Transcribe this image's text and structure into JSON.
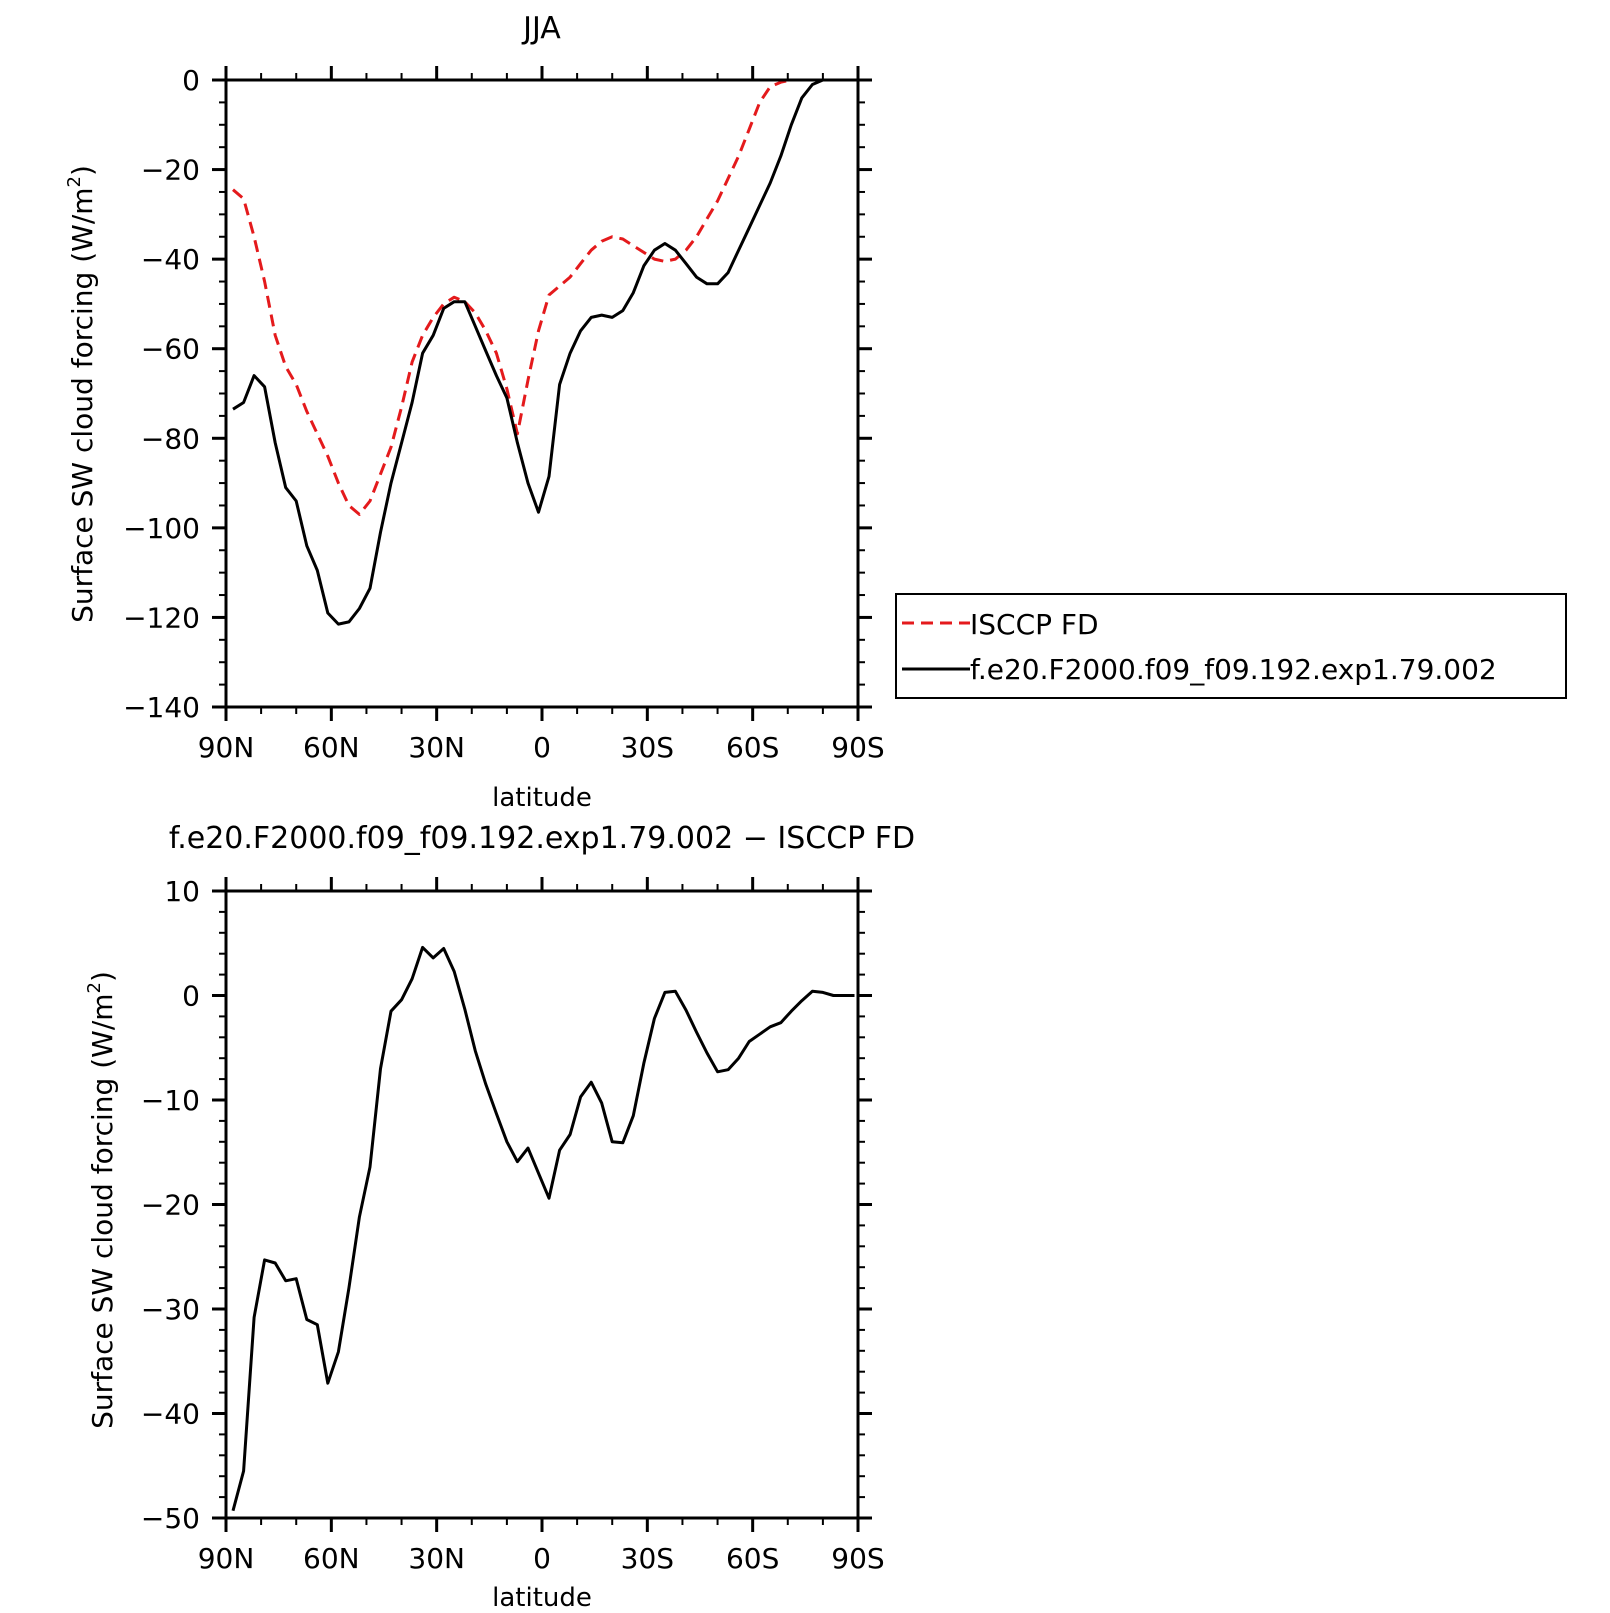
{
  "chart_data": [
    {
      "type": "line",
      "title": "JJA",
      "xlabel": "latitude",
      "ylabel": "Surface SW cloud forcing (W/m",
      "ylabel_sup": "2",
      "ylabel_end": ")",
      "x_ticks": [
        {
          "value": -90,
          "label": "90N"
        },
        {
          "value": -60,
          "label": "60N"
        },
        {
          "value": -30,
          "label": "30N"
        },
        {
          "value": 0,
          "label": "0"
        },
        {
          "value": 30,
          "label": "30S"
        },
        {
          "value": 60,
          "label": "60S"
        },
        {
          "value": 90,
          "label": "90S"
        }
      ],
      "xlim": [
        -90,
        90
      ],
      "ylim": [
        -140,
        0
      ],
      "y_ticks": [
        {
          "value": 0,
          "label": "0"
        },
        {
          "value": -20,
          "label": "−20"
        },
        {
          "value": -40,
          "label": "−40"
        },
        {
          "value": -60,
          "label": "−60"
        },
        {
          "value": -80,
          "label": "−80"
        },
        {
          "value": -100,
          "label": "−100"
        },
        {
          "value": -120,
          "label": "−120"
        },
        {
          "value": -140,
          "label": "−140"
        }
      ],
      "grid": false,
      "legend_position": "right",
      "series": [
        {
          "name": "ISCCP FD",
          "color": "#e41a1c",
          "dashed": true,
          "x": [
            -88,
            -85,
            -82,
            -79,
            -76,
            -73,
            -70,
            -67,
            -64,
            -61,
            -58,
            -55,
            -52,
            -49,
            -46,
            -43,
            -40,
            -37,
            -34,
            -31,
            -28,
            -25,
            -22,
            -19,
            -16,
            -13,
            -10,
            -7,
            -4,
            -1,
            2,
            5,
            8,
            11,
            14,
            17,
            20,
            23,
            26,
            29,
            32,
            35,
            38,
            41,
            44,
            47,
            50,
            53,
            56,
            59,
            62,
            65,
            68,
            71,
            74,
            77,
            80,
            83,
            86,
            89
          ],
          "y": [
            -24.5,
            -26.5,
            -35,
            -45,
            -57,
            -64,
            -68,
            -74,
            -79,
            -84,
            -90,
            -95,
            -97,
            -94,
            -88,
            -82,
            -73,
            -63,
            -57,
            -53,
            -50,
            -48.5,
            -49.5,
            -52,
            -56,
            -61,
            -69,
            -79,
            -67,
            -56,
            -48,
            -46,
            -44,
            -41,
            -38,
            -36,
            -35,
            -35.5,
            -37,
            -38.5,
            -40,
            -40.5,
            -40,
            -38,
            -35,
            -31,
            -27,
            -22,
            -17,
            -11,
            -5,
            -1.5,
            -0.5,
            0,
            0,
            0,
            0,
            0,
            0,
            0
          ]
        },
        {
          "name": "f.e20.F2000.f09_f09.192.exp1.79.002",
          "color": "#000000",
          "dashed": false,
          "x": [
            -88,
            -85,
            -82,
            -79,
            -76,
            -73,
            -70,
            -67,
            -64,
            -61,
            -58,
            -55,
            -52,
            -49,
            -46,
            -43,
            -40,
            -37,
            -34,
            -31,
            -28,
            -25,
            -22,
            -19,
            -16,
            -13,
            -10,
            -7,
            -4,
            -1,
            2,
            5,
            8,
            11,
            14,
            17,
            20,
            23,
            26,
            29,
            32,
            35,
            38,
            41,
            44,
            47,
            50,
            53,
            56,
            59,
            62,
            65,
            68,
            71,
            74,
            77,
            80,
            83,
            86,
            89
          ],
          "y": [
            -73.5,
            -72,
            -66,
            -68.5,
            -81,
            -91,
            -94,
            -104,
            -109.5,
            -119,
            -121.5,
            -121,
            -118,
            -113.5,
            -101,
            -90,
            -81,
            -72,
            -61,
            -57,
            -51,
            -49.5,
            -49.5,
            -55,
            -60.5,
            -66,
            -71,
            -81,
            -90,
            -96.5,
            -88.5,
            -68,
            -61,
            -56,
            -53,
            -52.5,
            -53,
            -51.5,
            -47.5,
            -41.5,
            -38,
            -36.5,
            -38,
            -41,
            -44,
            -45.5,
            -45.5,
            -43,
            -38,
            -33,
            -28,
            -23,
            -17,
            -10,
            -4,
            -1,
            0,
            0,
            0,
            0
          ]
        }
      ]
    },
    {
      "type": "line",
      "title": "f.e20.F2000.f09_f09.192.exp1.79.002 − ISCCP FD",
      "xlabel": "latitude",
      "ylabel": "Surface SW cloud forcing (W/m",
      "ylabel_sup": "2",
      "ylabel_end": ")",
      "x_ticks": [
        {
          "value": -90,
          "label": "90N"
        },
        {
          "value": -60,
          "label": "60N"
        },
        {
          "value": -30,
          "label": "30N"
        },
        {
          "value": 0,
          "label": "0"
        },
        {
          "value": 30,
          "label": "30S"
        },
        {
          "value": 60,
          "label": "60S"
        },
        {
          "value": 90,
          "label": "90S"
        }
      ],
      "xlim": [
        -90,
        90
      ],
      "ylim": [
        -50,
        10
      ],
      "y_ticks": [
        {
          "value": 10,
          "label": "10"
        },
        {
          "value": 0,
          "label": "0"
        },
        {
          "value": -10,
          "label": "−10"
        },
        {
          "value": -20,
          "label": "−20"
        },
        {
          "value": -30,
          "label": "−30"
        },
        {
          "value": -40,
          "label": "−40"
        },
        {
          "value": -50,
          "label": "−50"
        }
      ],
      "grid": false,
      "series": [
        {
          "color": "#000000",
          "dashed": false,
          "x": [
            -88,
            -85,
            -82,
            -79,
            -76,
            -73,
            -70,
            -67,
            -64,
            -61,
            -58,
            -55,
            -52,
            -49,
            -46,
            -43,
            -40,
            -37,
            -34,
            -31,
            -28,
            -25,
            -22,
            -19,
            -16,
            -13,
            -10,
            -7,
            -4,
            -1,
            2,
            5,
            8,
            11,
            14,
            17,
            20,
            23,
            26,
            29,
            32,
            35,
            38,
            41,
            44,
            47,
            50,
            53,
            56,
            59,
            62,
            65,
            68,
            71,
            74,
            77,
            80,
            83,
            86,
            89
          ],
          "y": [
            -49.3,
            -45.5,
            -30.8,
            -25.3,
            -25.6,
            -27.3,
            -27.1,
            -31,
            -31.5,
            -37.1,
            -34.1,
            -28,
            -21.2,
            -16.4,
            -7,
            -1.5,
            -0.4,
            1.6,
            4.6,
            3.6,
            4.5,
            2.3,
            -1.3,
            -5.3,
            -8.5,
            -11.3,
            -14,
            -15.9,
            -14.6,
            -17,
            -19.4,
            -14.8,
            -13.3,
            -9.7,
            -8.3,
            -10.3,
            -14,
            -14.1,
            -11.5,
            -6.5,
            -2.2,
            0.3,
            0.4,
            -1.4,
            -3.5,
            -5.5,
            -7.3,
            -7.1,
            -6,
            -4.4,
            -3.7,
            -3,
            -2.6,
            -1.5,
            -0.5,
            0.4,
            0.3,
            0,
            0,
            0
          ]
        }
      ]
    }
  ]
}
